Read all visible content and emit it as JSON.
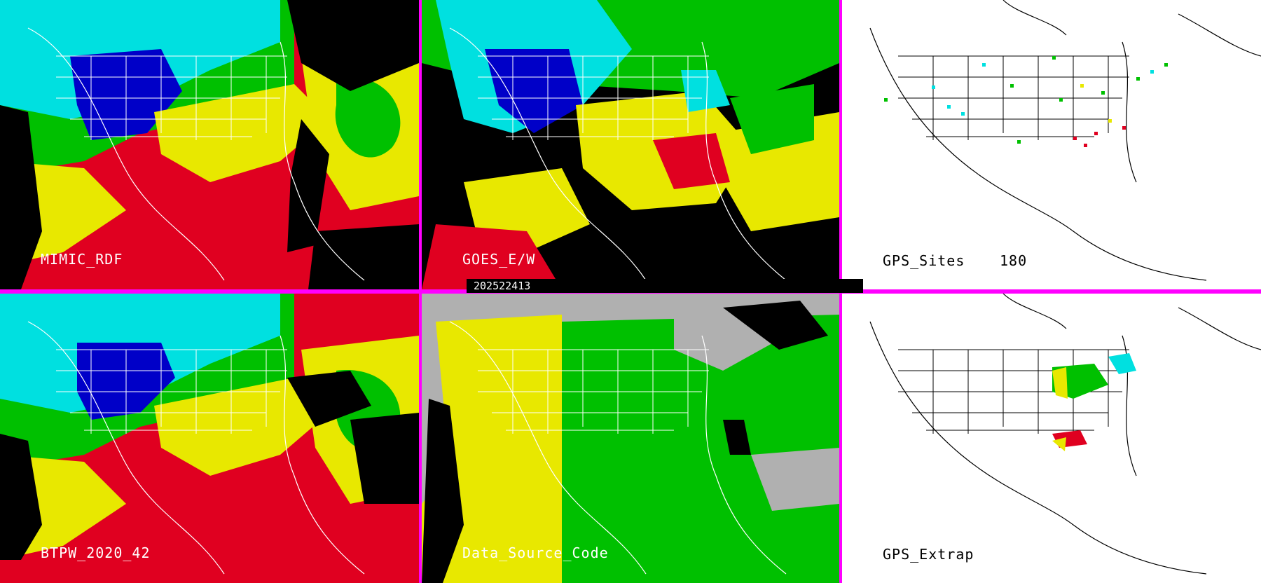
{
  "panels": [
    {
      "id": "mimic",
      "label": "MIMIC_RDF"
    },
    {
      "id": "goes",
      "label": "GOES_E/W"
    },
    {
      "id": "gps",
      "label": "GPS_Sites",
      "count": "180"
    },
    {
      "id": "btpw",
      "label": "BTPW_2020_42"
    },
    {
      "id": "source",
      "label": "Data_Source_Code"
    },
    {
      "id": "extrap",
      "label": "GPS_Extrap"
    }
  ],
  "timestamp": "202522413",
  "colors": {
    "divider": "#ff00ff",
    "dry": "#0000c8",
    "low": "#00e0e0",
    "mid": "#00c000",
    "high": "#e8e800",
    "very_high": "#e00020",
    "missing": "#000000",
    "background_gray": "#b0b0b0"
  }
}
